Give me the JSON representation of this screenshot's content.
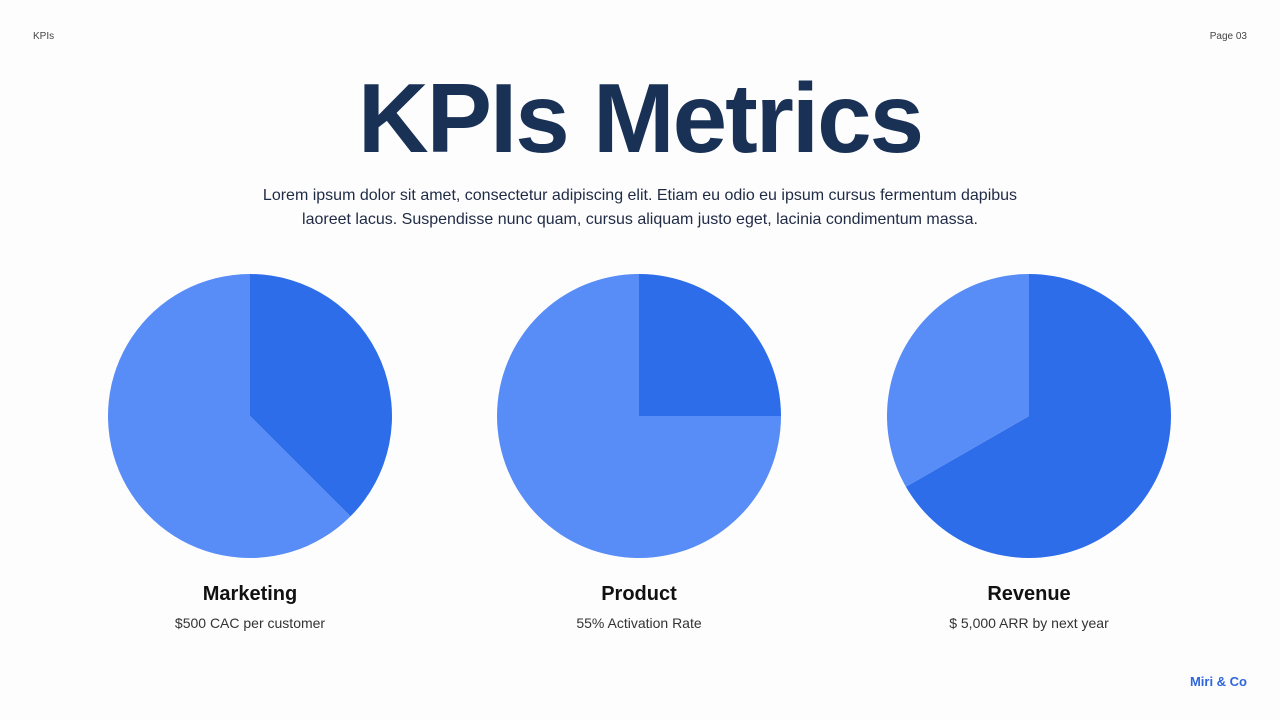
{
  "header": {
    "section": "KPIs",
    "page": "Page 03"
  },
  "title": "KPIs Metrics",
  "description": "Lorem ipsum dolor sit amet, consectetur adipiscing elit. Etiam eu odio eu ipsum cursus fermentum dapibus laoreet lacus. Suspendisse nunc quam, cursus aliquam justo eget, lacinia condimentum massa.",
  "colors": {
    "primary": "#2e6dea",
    "secondary": "#588cf6"
  },
  "chart_data": [
    {
      "type": "pie",
      "title": "Marketing",
      "subtitle": "$500 CAC per customer",
      "values": [
        37.5,
        62.5
      ]
    },
    {
      "type": "pie",
      "title": "Product",
      "subtitle": "55% Activation Rate",
      "values": [
        25,
        75
      ]
    },
    {
      "type": "pie",
      "title": "Revenue",
      "subtitle": "$ 5,000 ARR by next year",
      "values": [
        66.7,
        33.3
      ]
    }
  ],
  "footer": {
    "brand": "Miri & Co"
  }
}
